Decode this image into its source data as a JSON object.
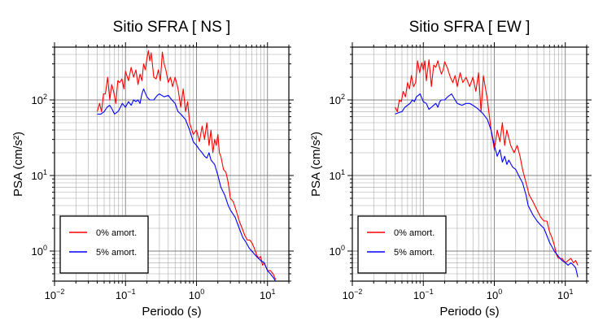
{
  "chart_data": [
    {
      "type": "line",
      "title": "Sitio SFRA [ NS ]",
      "xlabel": "Periodo (s)",
      "ylabel": "PSA (cm/s²)",
      "xscale": "log",
      "yscale": "log",
      "xlim": [
        0.01,
        20
      ],
      "ylim": [
        0.4,
        500
      ],
      "grid": true,
      "legend_position": "bottom-left",
      "xticks": [
        {
          "value": 0.01,
          "base": "10",
          "exp": "−2"
        },
        {
          "value": 0.1,
          "base": "10",
          "exp": "−1"
        },
        {
          "value": 1,
          "base": "10",
          "exp": "0"
        },
        {
          "value": 10,
          "base": "10",
          "exp": "1"
        }
      ],
      "yticks": [
        {
          "value": 1,
          "base": "10",
          "exp": "0"
        },
        {
          "value": 10,
          "base": "10",
          "exp": "1"
        },
        {
          "value": 100,
          "base": "10",
          "exp": "2"
        }
      ],
      "series": [
        {
          "name": "0% amort.",
          "color": "#ff0000",
          "x": [
            0.04,
            0.043,
            0.046,
            0.049,
            0.052,
            0.056,
            0.06,
            0.064,
            0.068,
            0.073,
            0.078,
            0.083,
            0.089,
            0.095,
            0.1,
            0.11,
            0.12,
            0.13,
            0.14,
            0.15,
            0.16,
            0.17,
            0.18,
            0.19,
            0.2,
            0.21,
            0.22,
            0.23,
            0.25,
            0.27,
            0.29,
            0.31,
            0.33,
            0.35,
            0.37,
            0.4,
            0.43,
            0.46,
            0.5,
            0.55,
            0.6,
            0.65,
            0.7,
            0.75,
            0.8,
            0.9,
            1.0,
            1.1,
            1.2,
            1.3,
            1.4,
            1.5,
            1.6,
            1.7,
            1.8,
            1.9,
            2.0,
            2.1,
            2.2,
            2.4,
            2.6,
            2.8,
            3.0,
            3.3,
            3.6,
            4.0,
            4.4,
            4.8,
            5.2,
            5.6,
            6.0,
            6.5,
            7.0,
            7.5,
            8.0,
            8.5,
            9.0,
            10,
            11,
            12,
            13
          ],
          "y": [
            70,
            90,
            70,
            120,
            120,
            200,
            100,
            160,
            130,
            90,
            180,
            170,
            190,
            140,
            240,
            180,
            270,
            200,
            250,
            160,
            220,
            180,
            300,
            250,
            350,
            450,
            330,
            420,
            200,
            190,
            250,
            180,
            430,
            300,
            250,
            170,
            200,
            150,
            200,
            140,
            80,
            140,
            70,
            95,
            50,
            35,
            40,
            28,
            45,
            30,
            50,
            25,
            40,
            20,
            30,
            25,
            35,
            20,
            18,
            12,
            11,
            8,
            5,
            4.5,
            3.5,
            2.5,
            2,
            1.6,
            1.4,
            1.4,
            1.3,
            1.1,
            0.9,
            0.8,
            0.85,
            0.65,
            0.7,
            0.55,
            0.55,
            0.5,
            0.42
          ]
        },
        {
          "name": "5% amort.",
          "color": "#0000ff",
          "x": [
            0.04,
            0.045,
            0.05,
            0.055,
            0.06,
            0.065,
            0.07,
            0.075,
            0.08,
            0.09,
            0.1,
            0.11,
            0.12,
            0.13,
            0.14,
            0.15,
            0.16,
            0.17,
            0.18,
            0.2,
            0.22,
            0.25,
            0.28,
            0.3,
            0.35,
            0.4,
            0.45,
            0.5,
            0.55,
            0.6,
            0.7,
            0.8,
            0.9,
            1.0,
            1.1,
            1.2,
            1.3,
            1.4,
            1.5,
            1.6,
            1.8,
            2.0,
            2.2,
            2.5,
            2.8,
            3.0,
            3.5,
            4.0,
            4.5,
            5.0,
            5.5,
            6.0,
            7.0,
            8.0,
            9.0,
            10,
            11,
            12,
            13
          ],
          "y": [
            65,
            65,
            70,
            80,
            85,
            75,
            65,
            68,
            72,
            90,
            80,
            95,
            85,
            100,
            95,
            100,
            90,
            120,
            140,
            110,
            100,
            100,
            115,
            120,
            110,
            115,
            100,
            90,
            70,
            65,
            55,
            40,
            28,
            25,
            22,
            20,
            18,
            17,
            20,
            16,
            14,
            10,
            7,
            5.5,
            4,
            3.5,
            2.8,
            2,
            1.5,
            1.3,
            1.1,
            1.0,
            0.85,
            0.75,
            0.7,
            0.55,
            0.5,
            0.45,
            0.4
          ]
        }
      ]
    },
    {
      "type": "line",
      "title": "Sitio SFRA [ EW ]",
      "xlabel": "Periodo (s)",
      "ylabel": "PSA (cm/s²)",
      "xscale": "log",
      "yscale": "log",
      "xlim": [
        0.01,
        20
      ],
      "ylim": [
        0.4,
        500
      ],
      "grid": true,
      "legend_position": "bottom-left",
      "xticks": [
        {
          "value": 0.01,
          "base": "10",
          "exp": "−2"
        },
        {
          "value": 0.1,
          "base": "10",
          "exp": "−1"
        },
        {
          "value": 1,
          "base": "10",
          "exp": "0"
        },
        {
          "value": 10,
          "base": "10",
          "exp": "1"
        }
      ],
      "yticks": [
        {
          "value": 1,
          "base": "10",
          "exp": "0"
        },
        {
          "value": 10,
          "base": "10",
          "exp": "1"
        },
        {
          "value": 100,
          "base": "10",
          "exp": "2"
        }
      ],
      "series": [
        {
          "name": "0% amort.",
          "color": "#ff0000",
          "x": [
            0.04,
            0.043,
            0.046,
            0.049,
            0.052,
            0.056,
            0.06,
            0.064,
            0.068,
            0.073,
            0.078,
            0.083,
            0.089,
            0.095,
            0.1,
            0.105,
            0.11,
            0.12,
            0.13,
            0.14,
            0.15,
            0.16,
            0.17,
            0.18,
            0.19,
            0.2,
            0.22,
            0.24,
            0.26,
            0.28,
            0.3,
            0.33,
            0.36,
            0.4,
            0.45,
            0.5,
            0.55,
            0.6,
            0.65,
            0.7,
            0.8,
            0.9,
            1.0,
            1.1,
            1.2,
            1.3,
            1.4,
            1.5,
            1.7,
            1.9,
            2.1,
            2.3,
            2.5,
            2.8,
            3.1,
            3.5,
            4.0,
            4.5,
            5.0,
            5.5,
            6.0,
            6.5,
            7.0,
            7.5,
            8.0,
            9.0,
            10,
            11,
            12,
            13,
            14,
            15
          ],
          "y": [
            80,
            70,
            100,
            95,
            130,
            110,
            170,
            140,
            210,
            150,
            170,
            330,
            230,
            310,
            250,
            330,
            180,
            340,
            150,
            290,
            270,
            330,
            260,
            220,
            250,
            320,
            260,
            200,
            170,
            210,
            150,
            230,
            170,
            200,
            150,
            200,
            130,
            230,
            70,
            210,
            100,
            40,
            22,
            40,
            28,
            50,
            25,
            40,
            25,
            20,
            25,
            18,
            12,
            8,
            5.5,
            4.5,
            3.5,
            2.8,
            2.5,
            2.5,
            1.8,
            1.5,
            1.2,
            0.9,
            0.8,
            0.8,
            0.7,
            0.75,
            0.8,
            0.7,
            0.75,
            0.65
          ]
        },
        {
          "name": "5% amort.",
          "color": "#0000ff",
          "x": [
            0.04,
            0.045,
            0.05,
            0.055,
            0.06,
            0.065,
            0.07,
            0.075,
            0.08,
            0.09,
            0.1,
            0.11,
            0.12,
            0.13,
            0.14,
            0.15,
            0.16,
            0.17,
            0.18,
            0.2,
            0.22,
            0.25,
            0.28,
            0.3,
            0.35,
            0.4,
            0.45,
            0.5,
            0.55,
            0.6,
            0.7,
            0.8,
            0.9,
            1.0,
            1.1,
            1.2,
            1.3,
            1.4,
            1.5,
            1.6,
            1.8,
            2.0,
            2.2,
            2.5,
            2.8,
            3.0,
            3.5,
            4.0,
            4.5,
            5.0,
            5.5,
            6.0,
            7.0,
            8.0,
            9.0,
            10,
            11,
            12,
            13,
            14,
            15
          ],
          "y": [
            65,
            68,
            70,
            80,
            85,
            90,
            100,
            95,
            110,
            120,
            95,
            90,
            75,
            80,
            85,
            90,
            80,
            95,
            100,
            100,
            110,
            120,
            100,
            90,
            85,
            90,
            90,
            85,
            80,
            75,
            65,
            55,
            40,
            25,
            18,
            22,
            15,
            18,
            14,
            16,
            13,
            12,
            10,
            8,
            5.5,
            4,
            3,
            2.5,
            2.2,
            2.0,
            1.6,
            1.3,
            1.0,
            0.85,
            0.75,
            0.7,
            0.65,
            0.7,
            0.65,
            0.6,
            0.45
          ]
        }
      ]
    }
  ]
}
